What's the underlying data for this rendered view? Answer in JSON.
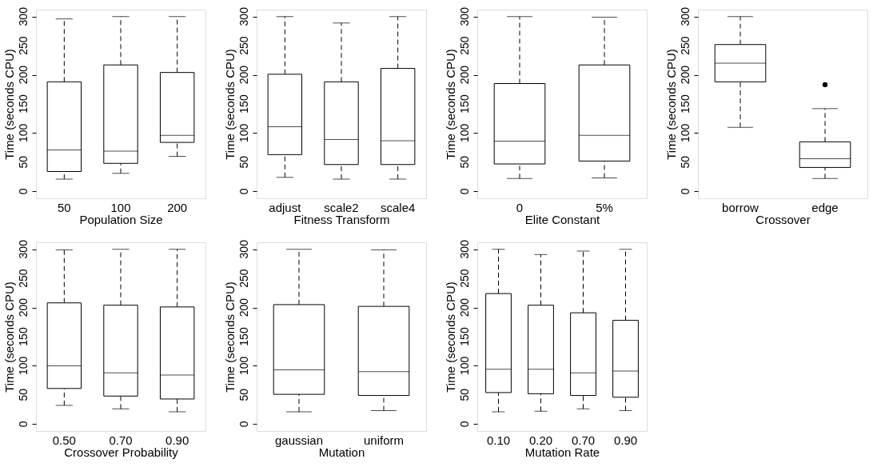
{
  "chart_data": [
    {
      "type": "box",
      "xlabel": "Population Size",
      "ylabel": "Time (seconds CPU)",
      "ylim": [
        -12,
        312
      ],
      "yticks": [
        0,
        50,
        100,
        150,
        200,
        250,
        300
      ],
      "categories": [
        "50",
        "100",
        "200"
      ],
      "boxes": [
        {
          "low": 21,
          "q1": 34,
          "median": 71,
          "q3": 188,
          "high": 296
        },
        {
          "low": 31,
          "q1": 48,
          "median": 69,
          "q3": 217,
          "high": 300
        },
        {
          "low": 60,
          "q1": 84,
          "median": 96,
          "q3": 204,
          "high": 300
        }
      ]
    },
    {
      "type": "box",
      "xlabel": "Fitness Transform",
      "ylabel": "Time (seconds CPU)",
      "ylim": [
        -12,
        312
      ],
      "yticks": [
        0,
        50,
        100,
        150,
        200,
        250,
        300
      ],
      "categories": [
        "adjust",
        "scale2",
        "scale4"
      ],
      "boxes": [
        {
          "low": 24,
          "q1": 63,
          "median": 111,
          "q3": 201,
          "high": 300
        },
        {
          "low": 21,
          "q1": 46,
          "median": 89,
          "q3": 188,
          "high": 289
        },
        {
          "low": 21,
          "q1": 46,
          "median": 87,
          "q3": 211,
          "high": 300
        }
      ]
    },
    {
      "type": "box",
      "xlabel": "Elite Constant",
      "ylabel": "Time (seconds CPU)",
      "ylim": [
        -12,
        312
      ],
      "yticks": [
        0,
        50,
        100,
        150,
        200,
        250,
        300
      ],
      "categories": [
        "0",
        "5%"
      ],
      "boxes": [
        {
          "low": 22,
          "q1": 47,
          "median": 86,
          "q3": 185,
          "high": 300
        },
        {
          "low": 23,
          "q1": 52,
          "median": 96,
          "q3": 217,
          "high": 299
        }
      ]
    },
    {
      "type": "box",
      "xlabel": "Crossover",
      "ylabel": "Time (seconds CPU)",
      "ylim": [
        -12,
        312
      ],
      "yticks": [
        0,
        50,
        100,
        150,
        200,
        250,
        300
      ],
      "categories": [
        "borrow",
        "edge"
      ],
      "boxes": [
        {
          "low": 110,
          "q1": 188,
          "median": 220,
          "q3": 252,
          "high": 300
        },
        {
          "low": 22,
          "q1": 41,
          "median": 56,
          "q3": 85,
          "high": 142,
          "outliers": [
            183
          ]
        }
      ]
    },
    {
      "type": "box",
      "xlabel": "Crossover Probability",
      "ylabel": "Time (seconds CPU)",
      "ylim": [
        -12,
        312
      ],
      "yticks": [
        0,
        50,
        100,
        150,
        200,
        250,
        300
      ],
      "categories": [
        "0.50",
        "0.70",
        "0.90"
      ],
      "boxes": [
        {
          "low": 32,
          "q1": 61,
          "median": 100,
          "q3": 208,
          "high": 299
        },
        {
          "low": 26,
          "q1": 48,
          "median": 88,
          "q3": 204,
          "high": 300
        },
        {
          "low": 21,
          "q1": 43,
          "median": 84,
          "q3": 201,
          "high": 300
        }
      ]
    },
    {
      "type": "box",
      "xlabel": "Mutation",
      "ylabel": "Time (seconds CPU)",
      "ylim": [
        -12,
        312
      ],
      "yticks": [
        0,
        50,
        100,
        150,
        200,
        250,
        300
      ],
      "categories": [
        "gaussian",
        "uniform"
      ],
      "boxes": [
        {
          "low": 21,
          "q1": 51,
          "median": 93,
          "q3": 205,
          "high": 300
        },
        {
          "low": 23,
          "q1": 49,
          "median": 90,
          "q3": 202,
          "high": 299
        }
      ]
    },
    {
      "type": "box",
      "xlabel": "Mutation Rate",
      "ylabel": "Time (seconds CPU)",
      "ylim": [
        -12,
        312
      ],
      "yticks": [
        0,
        50,
        100,
        150,
        200,
        250,
        300
      ],
      "categories": [
        "0.10",
        "0.20",
        "0.70",
        "0.90"
      ],
      "boxes": [
        {
          "low": 21,
          "q1": 54,
          "median": 94,
          "q3": 224,
          "high": 300
        },
        {
          "low": 22,
          "q1": 52,
          "median": 94,
          "q3": 204,
          "high": 291
        },
        {
          "low": 26,
          "q1": 49,
          "median": 88,
          "q3": 191,
          "high": 297
        },
        {
          "low": 23,
          "q1": 46,
          "median": 91,
          "q3": 178,
          "high": 300
        }
      ]
    }
  ]
}
